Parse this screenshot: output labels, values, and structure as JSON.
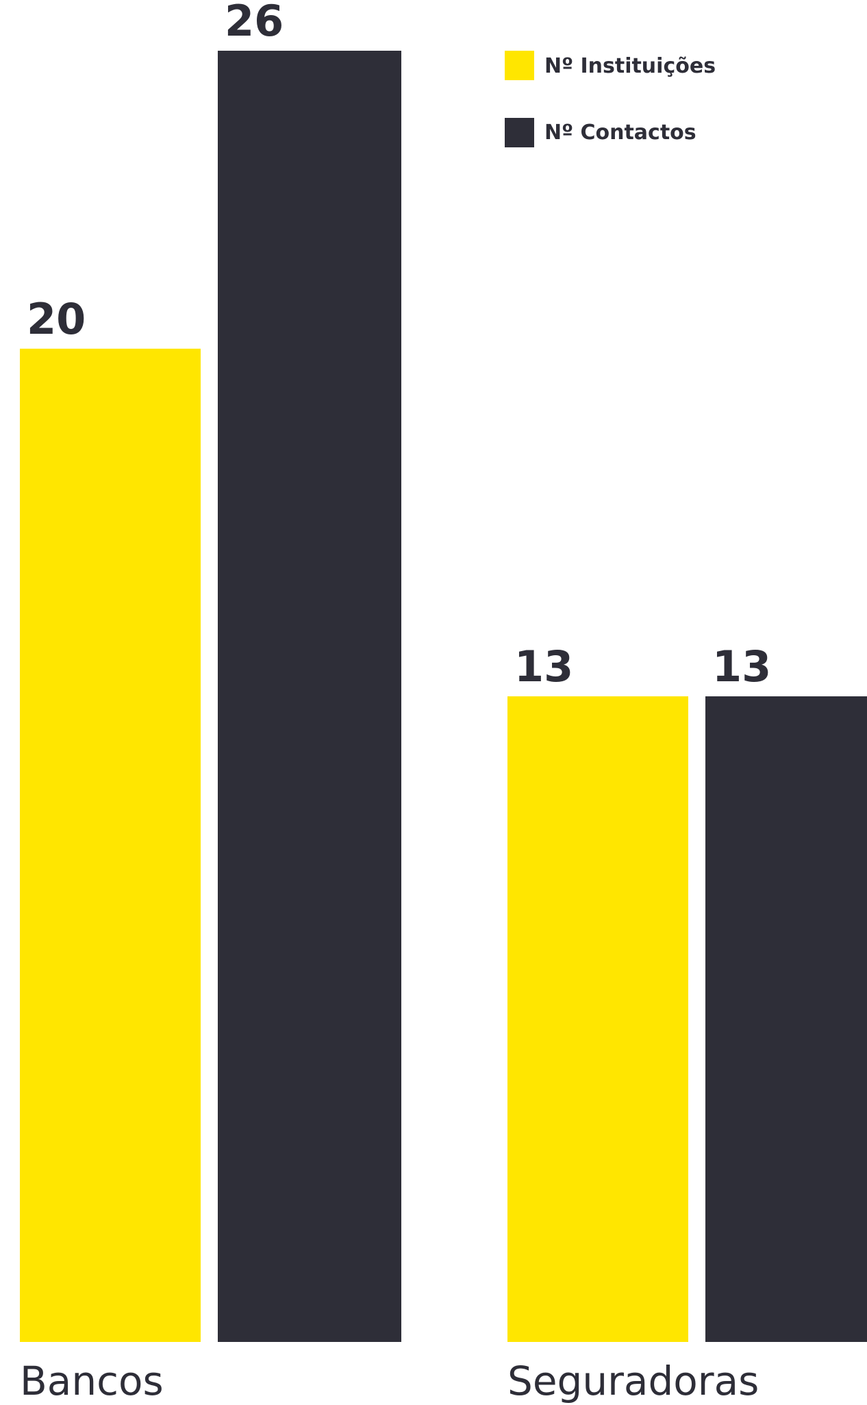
{
  "chart_data": {
    "type": "bar",
    "categories": [
      "Bancos",
      "Seguradoras"
    ],
    "series": [
      {
        "name": "Nº Instituições",
        "values": [
          20,
          13
        ],
        "color": "#ffe600"
      },
      {
        "name": "Nº Contactos",
        "values": [
          26,
          13
        ],
        "color": "#2e2e38"
      }
    ],
    "title": "",
    "xlabel": "",
    "ylabel": "",
    "ylim": [
      0,
      26
    ],
    "grid": false,
    "legend_position": "top-right"
  }
}
